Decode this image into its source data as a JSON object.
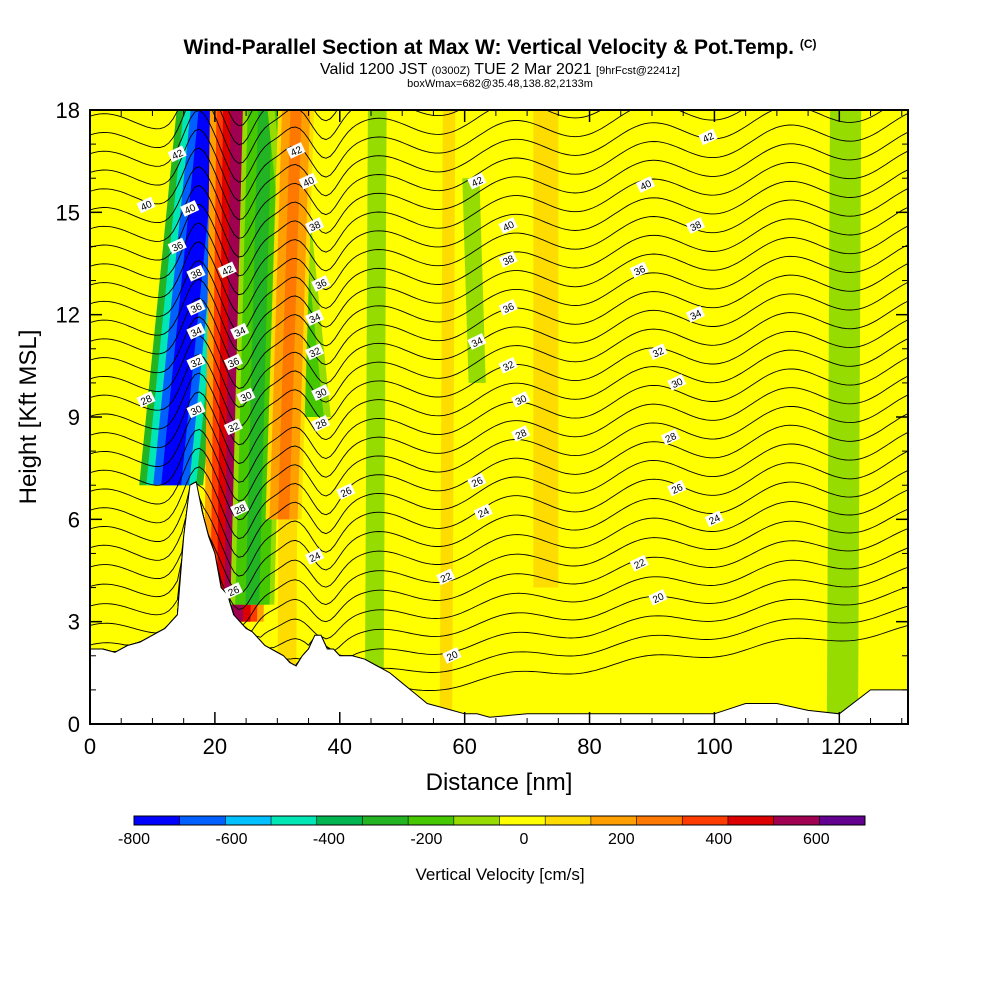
{
  "header": {
    "title": "Wind-Parallel Section at Max W: Vertical Velocity & Pot.Temp.",
    "copyright": "(C)",
    "valid_prefix": "Valid 1200 JST",
    "valid_zulu": "(0300Z)",
    "valid_date": "TUE 2 Mar 2021",
    "forecast": "[9hrFcst@2241z]",
    "boxinfo": "boxWmax=682@35.48,138.82,2133m"
  },
  "chart_data": {
    "type": "heatmap",
    "xlabel": "Distance [nm]",
    "ylabel": "Height [Kft MSL]",
    "xlim": [
      0,
      131
    ],
    "ylim": [
      0,
      18
    ],
    "x_ticks": [
      "0",
      "20",
      "40",
      "60",
      "80",
      "100",
      "120"
    ],
    "y_ticks": [
      "0",
      "3",
      "6",
      "9",
      "12",
      "15",
      "18"
    ],
    "colorbar": {
      "title": "Vertical Velocity [cm/s]",
      "range": [
        -800,
        700
      ],
      "tick_labels": [
        "-800",
        "-600",
        "-400",
        "-200",
        "0",
        "200",
        "400",
        "600"
      ],
      "colors": [
        "#0000ff",
        "#0060ff",
        "#00c0ff",
        "#00e6b4",
        "#00b450",
        "#23b423",
        "#46c800",
        "#96dc00",
        "#ffff00",
        "#ffdc00",
        "#ffa000",
        "#ff7800",
        "#ff3c00",
        "#dc0000",
        "#a00050",
        "#640090"
      ]
    },
    "vertical_velocity_bands": [
      {
        "x_bottom": 13,
        "x_top": 19,
        "y_bottom": 7,
        "y_top": 18,
        "value": -750
      },
      {
        "x_bottom": 23,
        "x_top": 24,
        "y_bottom": 3,
        "y_top": 18,
        "value": 550
      },
      {
        "x_bottom": 26,
        "x_top": 28,
        "y_bottom": 3.5,
        "y_top": 18,
        "value": -250
      },
      {
        "x_bottom": 36,
        "x_top": 31,
        "y_bottom": 9,
        "y_top": 18,
        "value": -200
      },
      {
        "x_bottom": 31,
        "x_top": 33,
        "y_bottom": 6,
        "y_top": 18,
        "value": 250
      },
      {
        "x_bottom": 62,
        "x_top": 61,
        "y_bottom": 10,
        "y_top": 16,
        "value": -120
      },
      {
        "x_bottom": 73,
        "x_top": 72,
        "y_bottom": 7,
        "y_top": 11,
        "value": -100
      },
      {
        "x_bottom": 73,
        "x_top": 73,
        "y_bottom": 4,
        "y_top": 18,
        "value": 120
      }
    ],
    "terrain_profile": {
      "x": [
        0,
        2,
        4,
        6,
        8,
        10,
        12,
        14,
        15,
        16,
        17,
        18,
        19,
        20,
        21,
        22,
        23,
        24,
        25,
        26,
        27,
        28,
        29,
        30,
        31,
        32,
        33,
        34,
        35,
        36,
        37,
        38,
        39,
        40,
        42,
        44,
        46,
        48,
        50,
        52,
        54,
        56,
        58,
        60,
        62,
        64,
        70,
        80,
        90,
        100,
        105,
        110,
        115,
        120,
        125,
        131
      ],
      "y": [
        2.2,
        2.2,
        2.1,
        2.3,
        2.4,
        2.6,
        2.8,
        3.2,
        5.5,
        7.0,
        7.1,
        6.2,
        5.5,
        5.0,
        4.0,
        3.8,
        3.2,
        3.0,
        2.8,
        2.7,
        2.5,
        2.3,
        2.2,
        2.1,
        2.0,
        1.8,
        1.7,
        2.0,
        2.2,
        2.6,
        2.6,
        2.2,
        2.2,
        2.0,
        2.0,
        1.9,
        1.7,
        1.5,
        1.2,
        0.9,
        0.6,
        0.5,
        0.4,
        0.3,
        0.3,
        0.2,
        0.3,
        0.3,
        0.3,
        0.3,
        0.6,
        0.6,
        0.4,
        0.3,
        1.0,
        1.0
      ]
    },
    "potential_temperature_labels": [
      "20",
      "22",
      "24",
      "26",
      "28",
      "30",
      "32",
      "34",
      "36",
      "38",
      "40",
      "42"
    ]
  }
}
